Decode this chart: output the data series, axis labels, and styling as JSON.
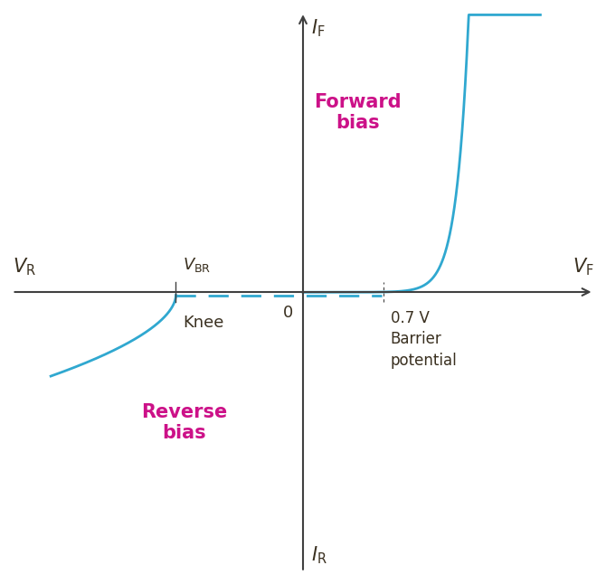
{
  "background_color": "#ffffff",
  "curve_color": "#30a8d0",
  "curve_linewidth": 2.0,
  "axis_color": "#404040",
  "text_color_dark": "#3a3020",
  "text_color_magenta": "#cc1188",
  "forward_bias_label": "Forward\nbias",
  "reverse_bias_label": "Reverse\nbias",
  "xlim": [
    -3.5,
    3.5
  ],
  "ylim": [
    -3.5,
    3.5
  ],
  "vbr_x": -1.5,
  "barrier_x": 0.95,
  "fs_main": 15,
  "fs_label": 13,
  "fs_annot": 12
}
